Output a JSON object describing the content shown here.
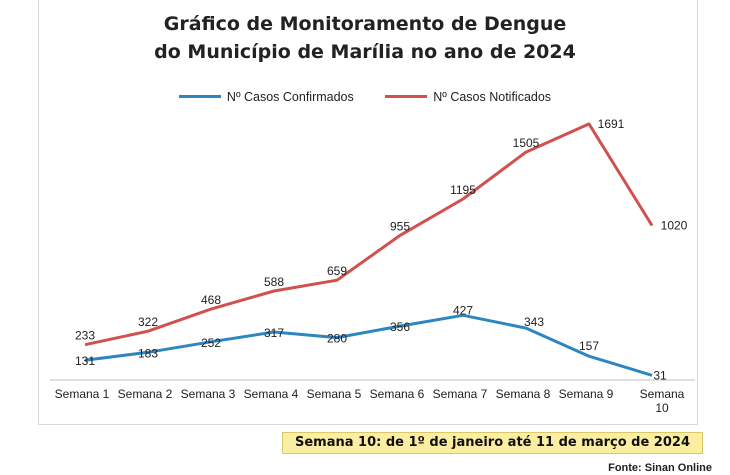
{
  "title_line1": "Gráfico de Monitoramento de Dengue",
  "title_line2": "do Município de Marília no ano de 2024",
  "footer_note": "Semana 10: de 1º de janeiro até 11 de março de 2024",
  "source": "Fonte: Sinan Online",
  "colors": {
    "confirmed": "#2e86c1",
    "notified": "#d0514d"
  },
  "chart_data": {
    "type": "line",
    "categories": [
      "Semana 1",
      "Semana 2",
      "Semana 3",
      "Semana 4",
      "Semana 5",
      "Semana 6",
      "Semana 7",
      "Semana 8",
      "Semana 9",
      "Semana 10"
    ],
    "category_lines": [
      [
        "Semana 1"
      ],
      [
        "Semana 2"
      ],
      [
        "Semana 3"
      ],
      [
        "Semana 4"
      ],
      [
        "Semana 5"
      ],
      [
        "Semana 6"
      ],
      [
        "Semana 7"
      ],
      [
        "Semana 8"
      ],
      [
        "Semana 9"
      ],
      [
        "Semana",
        "10"
      ]
    ],
    "series": [
      {
        "name": "Nº Casos Confirmados",
        "values": [
          131,
          183,
          252,
          317,
          280,
          356,
          427,
          343,
          157,
          31
        ]
      },
      {
        "name": "Nº Casos Notificados",
        "values": [
          233,
          322,
          468,
          588,
          659,
          955,
          1195,
          1505,
          1691,
          1020
        ]
      }
    ],
    "ylim": [
      0,
      1750
    ],
    "grid": false,
    "legend": "top-center"
  }
}
